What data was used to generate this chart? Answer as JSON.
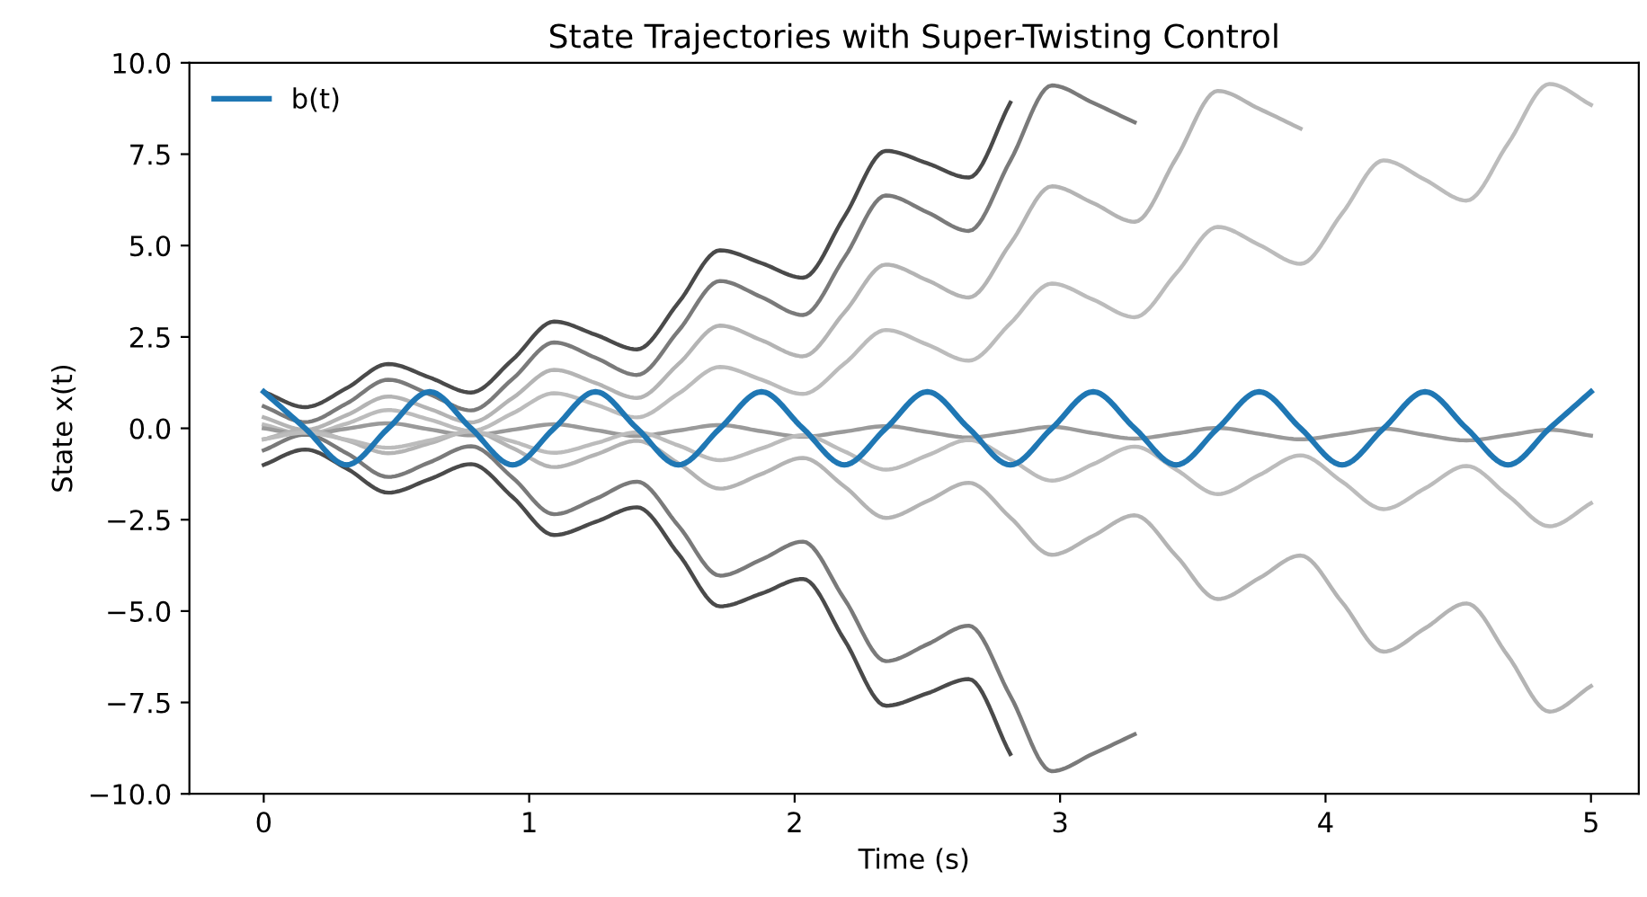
{
  "chart_data": {
    "type": "line",
    "title": "State Trajectories with Super-Twisting Control",
    "xlabel": "Time (s)",
    "ylabel": "State x(t)",
    "x": [
      0,
      0.156,
      0.3125,
      0.469,
      0.625,
      0.781,
      0.9375,
      1.094,
      1.25,
      1.406,
      1.5625,
      1.719,
      1.875,
      2.031,
      2.1875,
      2.344,
      2.5,
      2.656,
      2.8125,
      2.969,
      3.125,
      3.281,
      3.4375,
      3.594,
      3.75,
      3.906,
      4.0625,
      4.219,
      4.375,
      4.531,
      4.6875,
      4.844,
      5
    ],
    "xlim": [
      -0.28,
      5.18
    ],
    "xticks": [
      0,
      1,
      2,
      3,
      4,
      5
    ],
    "ylim": [
      -10,
      10
    ],
    "yticks": [
      {
        "value": -10,
        "label": "−10.0"
      },
      {
        "value": -7.5,
        "label": "−7.5"
      },
      {
        "value": -5,
        "label": "−5.0"
      },
      {
        "value": -2.5,
        "label": "−2.5"
      },
      {
        "value": 0,
        "label": "0.0"
      },
      {
        "value": 2.5,
        "label": "2.5"
      },
      {
        "value": 5,
        "label": "5.0"
      },
      {
        "value": 7.5,
        "label": "7.5"
      },
      {
        "value": 10,
        "label": "10.0"
      }
    ],
    "grid": false,
    "legend": "top left",
    "series": [
      {
        "color": "#4a4a4a",
        "values": [
          1,
          0.58,
          1.1,
          1.76,
          1.39,
          0.98,
          1.88,
          2.92,
          2.56,
          2.16,
          3.44,
          4.87,
          4.52,
          4.12,
          5.79,
          7.59,
          7.25,
          6.86,
          8.91,
          null,
          null,
          null,
          null,
          null,
          null,
          null,
          null,
          null,
          null,
          null,
          null,
          null,
          null
        ]
      },
      {
        "color": "#7a7a7a",
        "values": [
          0.6,
          0.17,
          0.68,
          1.33,
          0.93,
          0.49,
          1.35,
          2.35,
          1.93,
          1.46,
          2.67,
          4.03,
          3.59,
          3.1,
          4.67,
          6.37,
          5.91,
          5.4,
          7.32,
          9.38,
          8.9,
          8.37,
          null,
          null,
          null,
          null,
          null,
          null,
          null,
          null,
          null,
          null,
          null
        ]
      },
      {
        "color": "#b4b4b4",
        "values": [
          0.3,
          -0.04,
          0.36,
          0.87,
          0.53,
          0.16,
          0.83,
          1.6,
          1.24,
          0.83,
          1.76,
          2.81,
          2.41,
          1.97,
          3.17,
          4.48,
          4.05,
          3.58,
          5.05,
          6.62,
          6.16,
          5.65,
          7.39,
          9.23,
          8.74,
          8.2,
          null,
          null,
          null,
          null,
          null,
          null,
          null
        ]
      },
      {
        "color": "#bcbcbc",
        "values": [
          0.1,
          -0.16,
          0.13,
          0.5,
          0.24,
          -0.07,
          0.41,
          0.96,
          0.65,
          0.3,
          0.95,
          1.68,
          1.33,
          0.94,
          1.77,
          2.69,
          2.29,
          1.85,
          2.87,
          3.96,
          3.52,
          3.04,
          4.24,
          5.51,
          5.02,
          4.5,
          5.88,
          7.33,
          6.8,
          6.23,
          7.79,
          9.42,
          8.85
        ]
      },
      {
        "color": "#9a9a9a",
        "values": [
          0,
          -0.16,
          -0.01,
          0.14,
          -0.03,
          -0.19,
          -0.04,
          0.11,
          -0.05,
          -0.21,
          -0.06,
          0.09,
          -0.08,
          -0.23,
          -0.09,
          0.06,
          -0.1,
          -0.25,
          -0.11,
          0.04,
          -0.13,
          -0.28,
          -0.14,
          0.01,
          -0.15,
          -0.3,
          -0.16,
          -0.01,
          -0.18,
          -0.33,
          -0.19,
          -0.04,
          -0.2
        ]
      },
      {
        "color": "#4a4a4a",
        "values": [
          -1,
          -0.58,
          -1.1,
          -1.76,
          -1.39,
          -0.98,
          -1.88,
          -2.92,
          -2.56,
          -2.16,
          -3.44,
          -4.87,
          -4.52,
          -4.12,
          -5.79,
          -7.59,
          -7.25,
          -6.86,
          -8.91,
          null,
          null,
          null,
          null,
          null,
          null,
          null,
          null,
          null,
          null,
          null,
          null,
          null,
          null
        ]
      },
      {
        "color": "#7a7a7a",
        "values": [
          -0.6,
          -0.17,
          -0.68,
          -1.33,
          -0.93,
          -0.49,
          -1.35,
          -2.35,
          -1.93,
          -1.46,
          -2.67,
          -4.03,
          -3.59,
          -3.1,
          -4.67,
          -6.37,
          -5.91,
          -5.4,
          -7.32,
          -9.38,
          -8.9,
          -8.37,
          null,
          null,
          null,
          null,
          null,
          null,
          null,
          null,
          null,
          null,
          null
        ]
      },
      {
        "color": "#b4b4b4",
        "values": [
          -0.3,
          -0.04,
          -0.33,
          -0.68,
          -0.41,
          -0.08,
          -0.54,
          -1.06,
          -0.72,
          -0.34,
          -0.96,
          -1.65,
          -1.25,
          -0.81,
          -1.59,
          -2.45,
          -1.99,
          -1.49,
          -2.44,
          -3.46,
          -2.94,
          -2.38,
          -3.49,
          -4.67,
          -4.1,
          -3.48,
          -4.76,
          -6.11,
          -5.47,
          -4.79,
          -6.23,
          -7.75,
          -7.05
        ]
      },
      {
        "color": "#bcbcbc",
        "values": [
          -0.3,
          -0.12,
          -0.31,
          -0.53,
          -0.33,
          -0.09,
          -0.36,
          -0.67,
          -0.41,
          -0.11,
          -0.47,
          -0.87,
          -0.55,
          -0.19,
          -0.63,
          -1.13,
          -0.74,
          -0.32,
          -0.85,
          -1.43,
          -0.98,
          -0.5,
          -1.13,
          -1.8,
          -1.28,
          -0.74,
          -1.46,
          -2.21,
          -1.64,
          -1.03,
          -1.84,
          -2.68,
          -2.05
        ]
      },
      {
        "name": "b(t)",
        "color": "#1f77b4",
        "values": [
          1,
          0,
          -1,
          0,
          1,
          0,
          -1,
          0,
          1,
          0,
          -1,
          0,
          1,
          0,
          -1,
          0,
          1,
          0,
          -1,
          0,
          1,
          0,
          -1,
          0,
          1,
          0,
          -1,
          0,
          1,
          0,
          -1,
          0,
          1
        ]
      }
    ]
  }
}
